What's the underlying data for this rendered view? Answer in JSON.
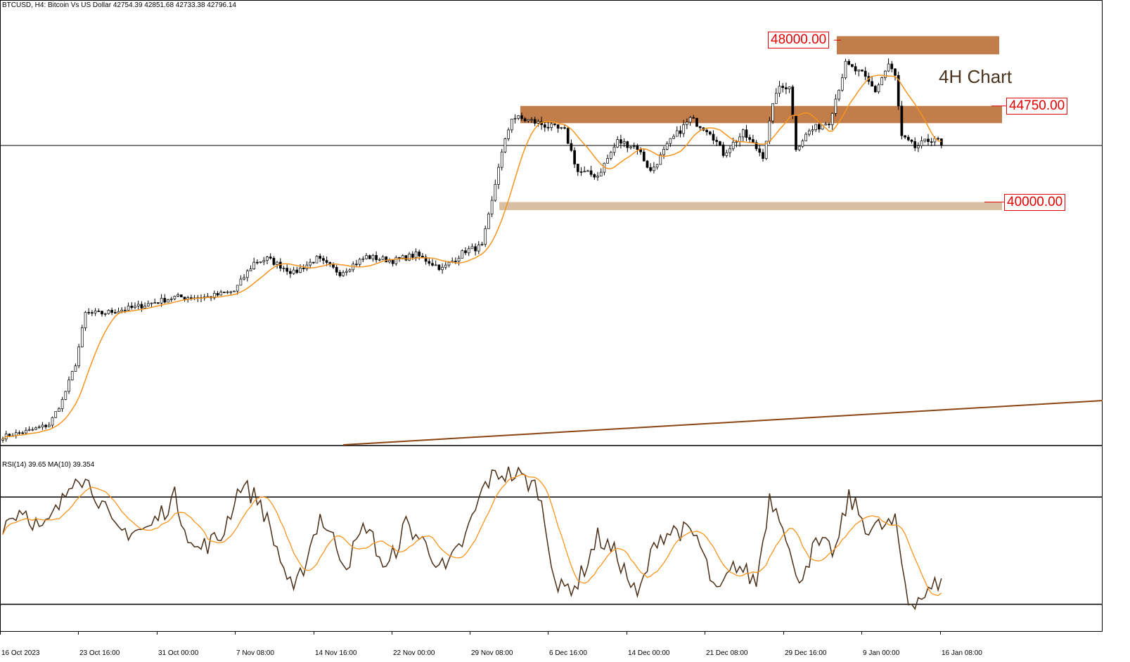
{
  "header": {
    "main": "BTCUSD, H4:  Bitcoin Vs US Dollar  42754.39 42851.68 42733.38 42796.14",
    "rsi": "RSI(14) 39.65 MA(10) 39.354"
  },
  "annotation": "4H Chart",
  "levels": [
    {
      "label": "48000.00",
      "price": 48000
    },
    {
      "label": "44750.00",
      "price": 44750
    },
    {
      "label": "40000.00",
      "price": 40000
    }
  ],
  "colors": {
    "zone_dark": "#c17d4a",
    "zone_light": "#d9c0a4",
    "ma": "#f7941d",
    "rsi": "#4a2e16",
    "trendline": "#8b4513",
    "level_label": "#e00000"
  },
  "chart_data": {
    "type": "candlestick",
    "symbol": "BTCUSD",
    "timeframe": "H4",
    "x_tick_labels": [
      "16 Oct 2023",
      "23 Oct 16:00",
      "31 Oct 00:00",
      "7 Nov 08:00",
      "14 Nov 16:00",
      "22 Nov 00:00",
      "29 Nov 08:00",
      "6 Dec 16:00",
      "14 Dec 00:00",
      "21 Dec 08:00",
      "29 Dec 16:00",
      "9 Jan 00:00",
      "16 Jan 08:00"
    ],
    "price_ylim": [
      28000,
      49500
    ],
    "last_price": 42796.14,
    "ohlc_last": {
      "open": 42754.39,
      "high": 42851.68,
      "low": 42733.38,
      "close": 42796.14
    },
    "price_anchors": [
      {
        "i": 0,
        "p": 28400
      },
      {
        "i": 8,
        "p": 28700
      },
      {
        "i": 14,
        "p": 29000
      },
      {
        "i": 18,
        "p": 30200
      },
      {
        "i": 22,
        "p": 32000
      },
      {
        "i": 25,
        "p": 34500
      },
      {
        "i": 30,
        "p": 34500
      },
      {
        "i": 40,
        "p": 34800
      },
      {
        "i": 52,
        "p": 35300
      },
      {
        "i": 62,
        "p": 35300
      },
      {
        "i": 70,
        "p": 35600
      },
      {
        "i": 76,
        "p": 37000
      },
      {
        "i": 80,
        "p": 37200
      },
      {
        "i": 88,
        "p": 36500
      },
      {
        "i": 95,
        "p": 37200
      },
      {
        "i": 102,
        "p": 36500
      },
      {
        "i": 110,
        "p": 37300
      },
      {
        "i": 118,
        "p": 37100
      },
      {
        "i": 125,
        "p": 37400
      },
      {
        "i": 133,
        "p": 36700
      },
      {
        "i": 140,
        "p": 37600
      },
      {
        "i": 145,
        "p": 37800
      },
      {
        "i": 148,
        "p": 40000
      },
      {
        "i": 150,
        "p": 41800
      },
      {
        "i": 154,
        "p": 44200
      },
      {
        "i": 160,
        "p": 44000
      },
      {
        "i": 170,
        "p": 43500
      },
      {
        "i": 174,
        "p": 41500
      },
      {
        "i": 180,
        "p": 41300
      },
      {
        "i": 186,
        "p": 43000
      },
      {
        "i": 192,
        "p": 42700
      },
      {
        "i": 196,
        "p": 41500
      },
      {
        "i": 202,
        "p": 43000
      },
      {
        "i": 208,
        "p": 44100
      },
      {
        "i": 214,
        "p": 43500
      },
      {
        "i": 218,
        "p": 42400
      },
      {
        "i": 224,
        "p": 43400
      },
      {
        "i": 230,
        "p": 42300
      },
      {
        "i": 234,
        "p": 45500
      },
      {
        "i": 238,
        "p": 45800
      },
      {
        "i": 240,
        "p": 42700
      },
      {
        "i": 244,
        "p": 43500
      },
      {
        "i": 250,
        "p": 44000
      },
      {
        "i": 255,
        "p": 46800
      },
      {
        "i": 260,
        "p": 46300
      },
      {
        "i": 264,
        "p": 45500
      },
      {
        "i": 268,
        "p": 46800
      },
      {
        "i": 270,
        "p": 46200
      },
      {
        "i": 272,
        "p": 43200
      },
      {
        "i": 276,
        "p": 42700
      },
      {
        "i": 282,
        "p": 43200
      },
      {
        "i": 284,
        "p": 42796
      }
    ],
    "rsi": {
      "period": 14,
      "ma_period": 10,
      "value": 39.65,
      "ma_value": 39.354,
      "levels": [
        70,
        30
      ],
      "ylim": [
        20,
        85
      ],
      "anchors": [
        {
          "i": 0,
          "v": 60
        },
        {
          "i": 6,
          "v": 66
        },
        {
          "i": 12,
          "v": 57
        },
        {
          "i": 18,
          "v": 68
        },
        {
          "i": 22,
          "v": 80
        },
        {
          "i": 28,
          "v": 72
        },
        {
          "i": 34,
          "v": 57
        },
        {
          "i": 44,
          "v": 58
        },
        {
          "i": 52,
          "v": 70
        },
        {
          "i": 58,
          "v": 50
        },
        {
          "i": 66,
          "v": 55
        },
        {
          "i": 72,
          "v": 75
        },
        {
          "i": 78,
          "v": 68
        },
        {
          "i": 88,
          "v": 33
        },
        {
          "i": 96,
          "v": 63
        },
        {
          "i": 104,
          "v": 45
        },
        {
          "i": 110,
          "v": 60
        },
        {
          "i": 116,
          "v": 42
        },
        {
          "i": 122,
          "v": 60
        },
        {
          "i": 128,
          "v": 52
        },
        {
          "i": 134,
          "v": 42
        },
        {
          "i": 140,
          "v": 55
        },
        {
          "i": 146,
          "v": 75
        },
        {
          "i": 150,
          "v": 79
        },
        {
          "i": 156,
          "v": 78
        },
        {
          "i": 162,
          "v": 73
        },
        {
          "i": 168,
          "v": 35
        },
        {
          "i": 174,
          "v": 38
        },
        {
          "i": 180,
          "v": 55
        },
        {
          "i": 186,
          "v": 48
        },
        {
          "i": 192,
          "v": 32
        },
        {
          "i": 198,
          "v": 55
        },
        {
          "i": 204,
          "v": 58
        },
        {
          "i": 210,
          "v": 55
        },
        {
          "i": 216,
          "v": 33
        },
        {
          "i": 222,
          "v": 45
        },
        {
          "i": 228,
          "v": 38
        },
        {
          "i": 232,
          "v": 70
        },
        {
          "i": 236,
          "v": 62
        },
        {
          "i": 240,
          "v": 38
        },
        {
          "i": 246,
          "v": 52
        },
        {
          "i": 252,
          "v": 50
        },
        {
          "i": 256,
          "v": 70
        },
        {
          "i": 262,
          "v": 58
        },
        {
          "i": 270,
          "v": 60
        },
        {
          "i": 274,
          "v": 31
        },
        {
          "i": 280,
          "v": 34
        },
        {
          "i": 284,
          "v": 39.65
        }
      ]
    }
  }
}
